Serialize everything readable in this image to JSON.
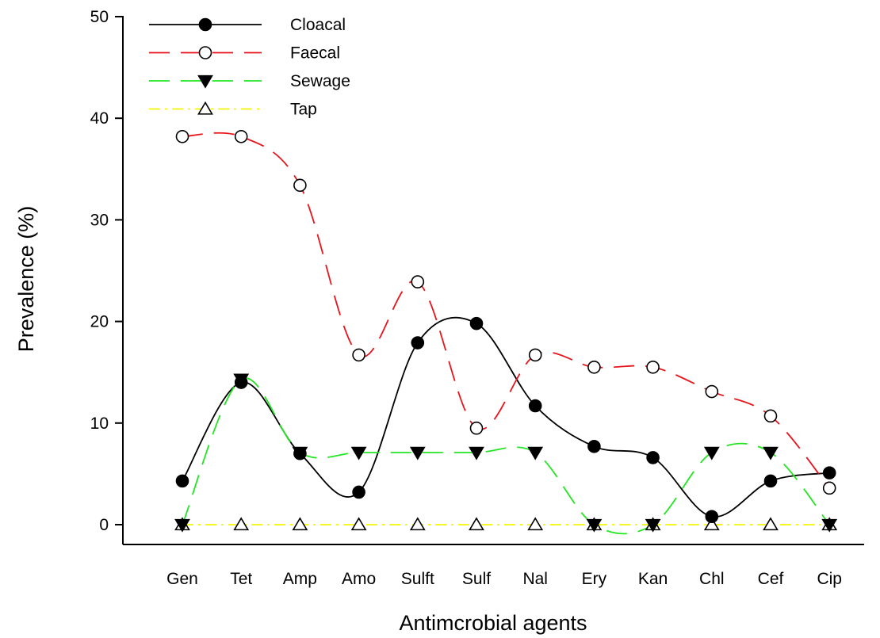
{
  "chart_data": {
    "type": "line",
    "title": "",
    "xlabel": "Antimcrobial agents",
    "ylabel": "Prevalence (%)",
    "ylim": [
      0,
      50
    ],
    "yticks": [
      "0",
      "10",
      "20",
      "30",
      "40",
      "50"
    ],
    "categories": [
      "Gen",
      "Tet",
      "Amp",
      "Amo",
      "Sulft",
      "Sulf",
      "Nal",
      "Ery",
      "Kan",
      "Chl",
      "Cef",
      "Cip"
    ],
    "legend_position": "top-left",
    "grid": false,
    "smooth": true,
    "series": [
      {
        "name": "Cloacal",
        "color": "#000000",
        "dash": "solid",
        "marker": "filled-circle",
        "values": [
          4.3,
          14.0,
          7.0,
          3.2,
          17.9,
          19.8,
          11.7,
          7.7,
          6.6,
          0.8,
          4.3,
          5.1
        ]
      },
      {
        "name": "Faecal",
        "color": "#e8141c",
        "dash": "long-dash",
        "marker": "open-circle",
        "values": [
          38.2,
          38.2,
          33.4,
          16.7,
          23.9,
          9.5,
          16.7,
          15.5,
          15.5,
          13.1,
          10.7,
          3.6
        ]
      },
      {
        "name": "Sewage",
        "color": "#22e622",
        "dash": "long-dash",
        "marker": "filled-triangle-down",
        "values": [
          0,
          14.3,
          7.1,
          7.1,
          7.1,
          7.1,
          7.1,
          0,
          0,
          7.1,
          7.1,
          0
        ]
      },
      {
        "name": "Tap",
        "color": "#f5f500",
        "dash": "dash-dot",
        "marker": "open-triangle-up",
        "values": [
          0,
          0,
          0,
          0,
          0,
          0,
          0,
          0,
          0,
          0,
          0,
          0
        ]
      }
    ]
  }
}
